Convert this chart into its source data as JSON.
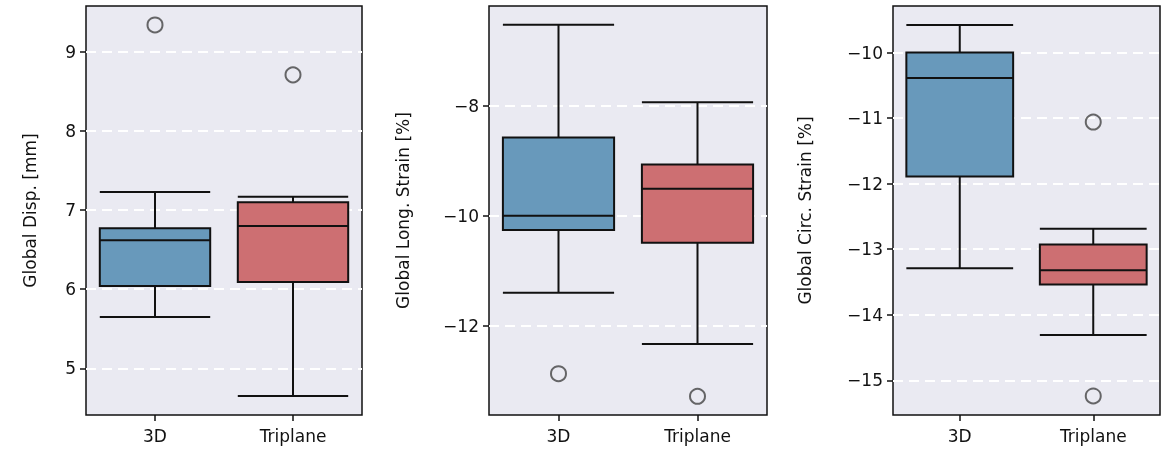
{
  "chart_data": [
    {
      "type": "box",
      "ylabel": "Global Disp. [mm]",
      "categories": [
        "3D",
        "Triplane"
      ],
      "colors": [
        "#6899bb",
        "#cd6f72"
      ],
      "ylim": [
        4.41,
        9.58
      ],
      "yticks": [
        5,
        6,
        7,
        8,
        9
      ],
      "grid": "y",
      "boxes": [
        {
          "low": 5.65,
          "q1": 6.04,
          "median": 6.62,
          "q3": 6.77,
          "high": 7.23,
          "outliers": [
            9.34
          ]
        },
        {
          "low": 4.65,
          "q1": 6.09,
          "median": 6.8,
          "q3": 7.1,
          "high": 7.17,
          "outliers": [
            8.71
          ]
        }
      ]
    },
    {
      "type": "box",
      "ylabel": "Global Long. Strain [%]",
      "categories": [
        "3D",
        "Triplane"
      ],
      "colors": [
        "#6899bb",
        "#cd6f72"
      ],
      "ylim": [
        -13.62,
        -6.19
      ],
      "yticks": [
        -12,
        -10,
        -8
      ],
      "grid": "y",
      "boxes": [
        {
          "low": -11.4,
          "q1": -10.26,
          "median": -10.0,
          "q3": -8.58,
          "high": -6.53,
          "outliers": [
            -12.87
          ]
        },
        {
          "low": -12.33,
          "q1": -10.49,
          "median": -9.51,
          "q3": -9.07,
          "high": -7.94,
          "outliers": [
            -13.28
          ]
        }
      ]
    },
    {
      "type": "box",
      "ylabel": "Global Circ. Strain [%]",
      "categories": [
        "3D",
        "Triplane"
      ],
      "colors": [
        "#6899bb",
        "#cd6f72"
      ],
      "ylim": [
        -15.53,
        -9.29
      ],
      "yticks": [
        -15,
        -14,
        -13,
        -12,
        -11,
        -10
      ],
      "grid": "y",
      "boxes": [
        {
          "low": -13.29,
          "q1": -11.89,
          "median": -10.39,
          "q3": -10.0,
          "high": -9.58
        },
        {
          "low": -14.31,
          "q1": -13.54,
          "median": -13.32,
          "q3": -12.93,
          "high": -12.69,
          "outliers": [
            -11.06,
            -15.24
          ]
        }
      ]
    }
  ]
}
